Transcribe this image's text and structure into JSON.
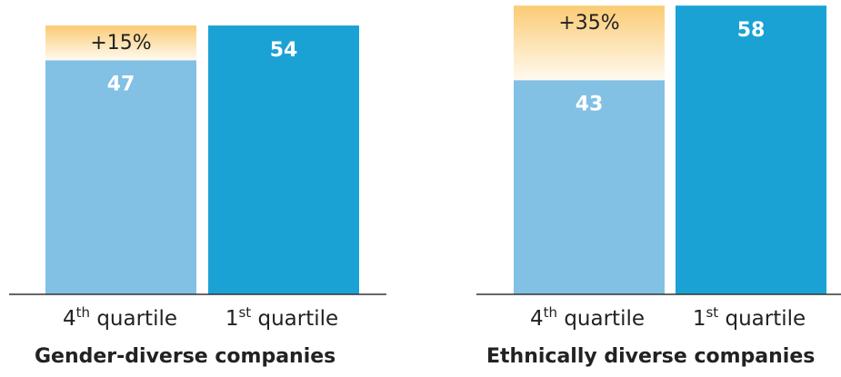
{
  "chart_data": [
    {
      "type": "bar",
      "title": "Gender-diverse companies",
      "categories": [
        {
          "number": "4",
          "suffix": "th",
          "word": "quartile"
        },
        {
          "number": "1",
          "suffix": "st",
          "word": "quartile"
        }
      ],
      "values": [
        47,
        54
      ],
      "value_labels": [
        "47",
        "54"
      ],
      "uplift": {
        "value": 15,
        "label": "+15%"
      },
      "ylim": [
        0,
        62
      ],
      "colors": {
        "fourth_quartile": "#82c0e4",
        "first_quartile": "#1ba2d5",
        "uplift_top": "#fbcb74",
        "uplift_bottom": "#fffaf0"
      }
    },
    {
      "type": "bar",
      "title": "Ethnically diverse companies",
      "categories": [
        {
          "number": "4",
          "suffix": "th",
          "word": "quartile"
        },
        {
          "number": "1",
          "suffix": "st",
          "word": "quartile"
        }
      ],
      "values": [
        43,
        58
      ],
      "value_labels": [
        "43",
        "58"
      ],
      "uplift": {
        "value": 35,
        "label": "+35%"
      },
      "ylim": [
        0,
        62
      ],
      "colors": {
        "fourth_quartile": "#82c0e4",
        "first_quartile": "#1ba2d5",
        "uplift_top": "#fbcb74",
        "uplift_bottom": "#fffaf0"
      }
    }
  ]
}
